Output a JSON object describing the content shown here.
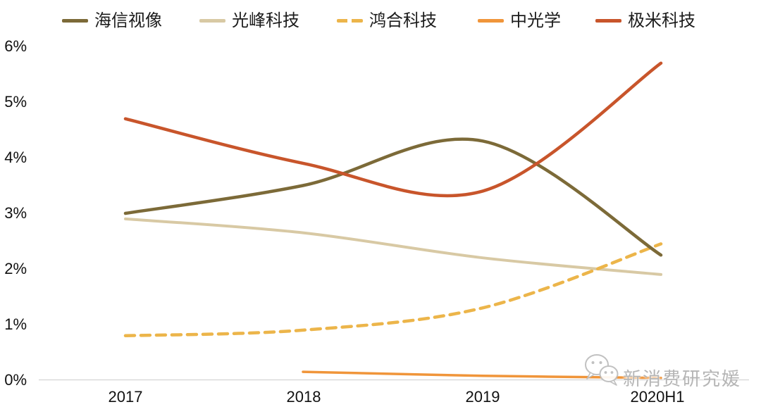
{
  "legend": {
    "items": [
      {
        "label": "海信视像",
        "color": "#7c6a38",
        "dash": "solid"
      },
      {
        "label": "光峰科技",
        "color": "#d8c9a4",
        "dash": "solid"
      },
      {
        "label": "鸿合科技",
        "color": "#ecb54a",
        "dash": "dashed"
      },
      {
        "label": "中光学",
        "color": "#f0953a",
        "dash": "solid"
      },
      {
        "label": "极米科技",
        "color": "#c8552b",
        "dash": "solid"
      }
    ]
  },
  "chart_data": {
    "type": "line",
    "categories": [
      "2017",
      "2018",
      "2019",
      "2020H1"
    ],
    "series": [
      {
        "name": "海信视像",
        "color": "#7c6a38",
        "style": "solid",
        "values": [
          3.0,
          3.5,
          4.3,
          2.25
        ]
      },
      {
        "name": "光峰科技",
        "color": "#d8c9a4",
        "style": "solid",
        "values": [
          2.9,
          2.65,
          2.2,
          1.9
        ]
      },
      {
        "name": "鸿合科技",
        "color": "#ecb54a",
        "style": "dashed",
        "values": [
          0.8,
          0.9,
          1.3,
          2.45
        ]
      },
      {
        "name": "中光学",
        "color": "#f0953a",
        "style": "solid",
        "values": [
          null,
          0.15,
          0.08,
          0.04
        ]
      },
      {
        "name": "极米科技",
        "color": "#c8552b",
        "style": "solid",
        "values": [
          4.7,
          3.9,
          3.4,
          5.7
        ]
      }
    ],
    "yticks": [
      "0%",
      "1%",
      "2%",
      "3%",
      "4%",
      "5%",
      "6%"
    ],
    "ylim": [
      0,
      6
    ],
    "xlabel": "",
    "ylabel": "",
    "grid": false,
    "legend_position": "top",
    "smoothing": true
  },
  "watermark": {
    "text": "新消费研究媛",
    "icon": "wechat-icon"
  },
  "colors": {
    "axis_line": "#d9d9d9",
    "tick_text": "#111111",
    "watermark_text": "#b5b5b5"
  }
}
